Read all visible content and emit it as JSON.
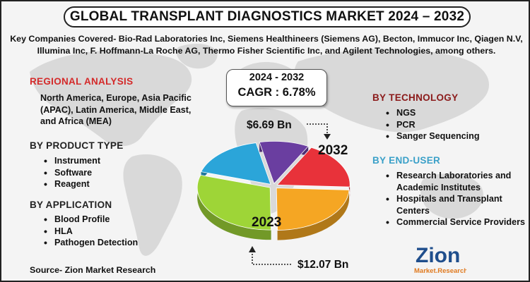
{
  "title": "GLOBAL TRANSPLANT DIAGNOSTICS MARKET 2024 – 2032",
  "companies": "Key Companies Covered- Bio-Rad Laboratories Inc, Siemens Healthineers (Siemens AG), Becton, Immucor Inc, Qiagen N.V, Illumina Inc, F. Hoffmann-La Roche AG, Thermo Fisher Scientific Inc, and Agilent Technologies, among others.",
  "regional": {
    "title": "REGIONAL ANALYSIS",
    "text": "North America, Europe, Asia Pacific (APAC), Latin America, Middle East, and Africa (MEA)"
  },
  "product_type": {
    "title": "BY PRODUCT TYPE",
    "items": [
      "Instrument",
      "Software",
      "Reagent"
    ]
  },
  "application": {
    "title": "BY APPLICATION",
    "items": [
      "Blood Profile",
      "HLA",
      "Pathogen Detection"
    ]
  },
  "technology": {
    "title": "BY TECHNOLOGY",
    "items": [
      "NGS",
      "PCR",
      "Sanger Sequencing"
    ]
  },
  "end_user": {
    "title": "BY END-USER",
    "items": [
      "Research Laboratories and Academic Institutes",
      "Hospitals and Transplant Centers",
      "Commercial Service Providers"
    ]
  },
  "cagr": {
    "period": "2024 - 2032",
    "value": "CAGR : 6.78%"
  },
  "source": "Source- Zion Market Research",
  "logo": {
    "name": "Zion",
    "sub": "Market.Research"
  },
  "colors": {
    "regional_title": "#d42a2a",
    "section_title": "#222222",
    "technology_title": "#8b1a1a",
    "end_user_title": "#3aa0c8",
    "map": "#d0d0d0"
  },
  "chart_data": {
    "type": "pie",
    "style": "3d exploded",
    "start_value": "$6.69 Bn",
    "end_value": "$12.07 Bn",
    "start_label": "2023",
    "end_label": "2032",
    "slices": [
      {
        "label": "2032",
        "share": 0.18,
        "color": "#e8323a"
      },
      {
        "label": "",
        "share": 0.24,
        "color": "#f5a623"
      },
      {
        "label": "2023",
        "share": 0.3,
        "color": "#9ed537"
      },
      {
        "label": "",
        "share": 0.17,
        "color": "#2ba5d9"
      },
      {
        "label": "",
        "share": 0.11,
        "color": "#6a3ea0"
      }
    ]
  }
}
